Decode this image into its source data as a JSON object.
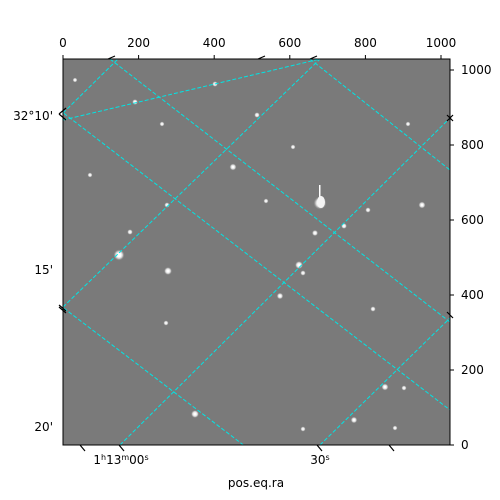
{
  "figure": {
    "xlabel": "pos.eq.ra",
    "top_ticks": [
      "0",
      "200",
      "400",
      "600",
      "800",
      "1000"
    ],
    "right_ticks": [
      "0",
      "200",
      "400",
      "600",
      "800",
      "1000"
    ],
    "dec_ticks": [
      "32°10'",
      "15'",
      "20'"
    ],
    "ra_ticks": [
      "1h13m00s",
      "30s"
    ],
    "grid_color": "#00e5e5",
    "background_gray": "#7a7a7a"
  }
}
